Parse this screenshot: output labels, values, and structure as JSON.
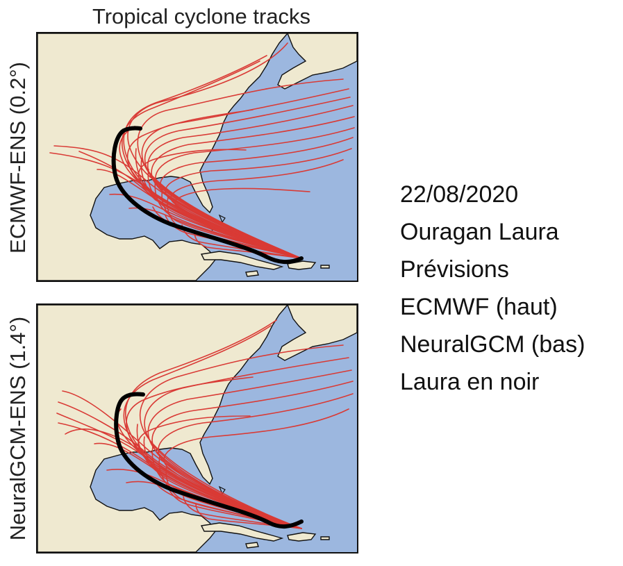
{
  "figure": {
    "title": "Tropical cyclone tracks"
  },
  "panels": [
    {
      "label": "ECMWF-ENS (0.2°)"
    },
    {
      "label": "NeuralGCM-ENS (1.4°)"
    }
  ],
  "notes": [
    "22/08/2020",
    "Ouragan Laura",
    "Prévisions",
    "ECMWF (haut)",
    "NeuralGCM (bas)",
    "Laura en noir"
  ],
  "colors": {
    "ocean": "#9cb7df",
    "land": "#efe9d0",
    "forecast_tracks": "#d93a35",
    "observed_track": "#000000"
  }
}
